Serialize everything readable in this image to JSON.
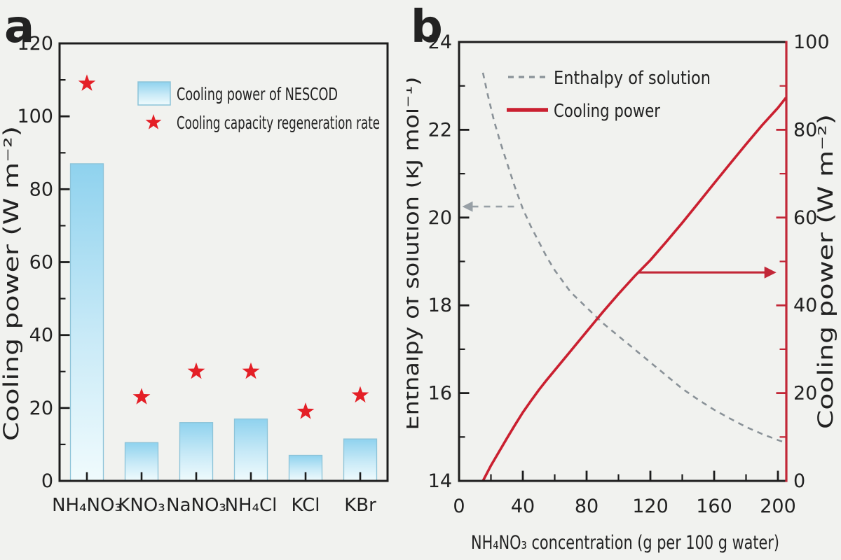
{
  "panel_a": {
    "label": "a",
    "ylabel": "Cooling power (W m⁻²)",
    "legend": {
      "bar_label": "Cooling power of NESCOD",
      "star_label": "Cooling capacity regeneration rate"
    }
  },
  "panel_b": {
    "label": "b",
    "xlabel": "NH₄NO₃ concentration (g per 100 g water)",
    "left_ylabel": "Enthalpy of solution (kJ mol⁻¹)",
    "right_ylabel": "Cooling power (W m⁻²)",
    "legend": {
      "dashed_label": "Enthalpy of solution",
      "solid_label": "Cooling power"
    }
  },
  "colors": {
    "bar_top": "#8fd2ee",
    "bar_mid": "#c9eaf7",
    "bar_bottom": "#f0fbfd",
    "bar_border": "#8cc3d8",
    "star_red": "#e41f26",
    "line_red": "#ca2030",
    "right_axis_red": "#c22737",
    "dash_gray": "#8a9298",
    "arrow_gray": "#98a0a6",
    "frame_black": "#1d1d1d",
    "text_dark": "#222222"
  },
  "chart_data": [
    {
      "id": "panel-a",
      "type": "bar",
      "title": "",
      "categories": [
        "NH₄NO₃",
        "KNO₃",
        "NaNO₃",
        "NH₄Cl",
        "KCl",
        "KBr"
      ],
      "series": [
        {
          "name": "Cooling power of NESCOD",
          "type": "bar",
          "values": [
            87,
            10.5,
            16,
            17,
            7,
            11.5
          ]
        },
        {
          "name": "Cooling capacity regeneration rate",
          "type": "star-scatter",
          "values": [
            109,
            23,
            30,
            30,
            19,
            23.5
          ]
        }
      ],
      "xlabel": "",
      "ylabel": "Cooling power (W m⁻²)",
      "ylim": [
        0,
        120
      ],
      "yticks": [
        0,
        20,
        40,
        60,
        80,
        100,
        120
      ],
      "yminor_step": 10,
      "grid": false,
      "legend_position": "upper-right-inside"
    },
    {
      "id": "panel-b",
      "type": "line",
      "title": "",
      "xlabel": "NH₄NO₃ concentration (g per 100 g water)",
      "xlim": [
        0,
        205
      ],
      "xticks": [
        0,
        40,
        80,
        120,
        160,
        200
      ],
      "xminor_step": 20,
      "grid": false,
      "legend_position": "upper-left-inside",
      "left_axis": {
        "label": "Enthalpy of solution (kJ mol⁻¹)",
        "lim": [
          14,
          24
        ],
        "ticks": [
          14,
          16,
          18,
          20,
          22,
          24
        ],
        "minor_step": 1
      },
      "right_axis": {
        "label": "Cooling power (W m⁻²)",
        "lim": [
          0,
          100
        ],
        "ticks": [
          0,
          20,
          40,
          60,
          80,
          100
        ],
        "minor_step": 10
      },
      "series": [
        {
          "name": "Enthalpy of solution",
          "axis": "left",
          "style": "dashed",
          "points": [
            [
              15,
              23.3
            ],
            [
              18,
              22.8
            ],
            [
              22,
              22.2
            ],
            [
              26,
              21.7
            ],
            [
              30,
              21.25
            ],
            [
              35,
              20.7
            ],
            [
              40,
              20.2
            ],
            [
              45,
              19.8
            ],
            [
              50,
              19.45
            ],
            [
              55,
              19.1
            ],
            [
              60,
              18.8
            ],
            [
              70,
              18.3
            ],
            [
              80,
              17.95
            ],
            [
              90,
              17.6
            ],
            [
              100,
              17.3
            ],
            [
              110,
              17.0
            ],
            [
              120,
              16.7
            ],
            [
              130,
              16.4
            ],
            [
              140,
              16.1
            ],
            [
              150,
              15.85
            ],
            [
              160,
              15.62
            ],
            [
              170,
              15.42
            ],
            [
              180,
              15.23
            ],
            [
              190,
              15.07
            ],
            [
              200,
              14.93
            ],
            [
              205,
              14.87
            ]
          ]
        },
        {
          "name": "Cooling power",
          "axis": "right",
          "style": "solid",
          "points": [
            [
              15,
              0
            ],
            [
              20,
              3.5
            ],
            [
              25,
              6.6
            ],
            [
              30,
              9.7
            ],
            [
              35,
              12.7
            ],
            [
              40,
              15.6
            ],
            [
              45,
              18.2
            ],
            [
              50,
              20.7
            ],
            [
              55,
              23.0
            ],
            [
              60,
              25.2
            ],
            [
              65,
              27.4
            ],
            [
              70,
              29.6
            ],
            [
              75,
              31.8
            ],
            [
              80,
              34.0
            ],
            [
              85,
              36.2
            ],
            [
              90,
              38.4
            ],
            [
              95,
              40.5
            ],
            [
              100,
              42.6
            ],
            [
              110,
              46.6
            ],
            [
              120,
              50.3
            ],
            [
              130,
              54.5
            ],
            [
              140,
              58.8
            ],
            [
              150,
              63.3
            ],
            [
              160,
              67.8
            ],
            [
              170,
              72.3
            ],
            [
              180,
              76.7
            ],
            [
              190,
              81.0
            ],
            [
              200,
              85.0
            ],
            [
              205,
              87.3
            ]
          ]
        }
      ],
      "annotations": [
        {
          "type": "arrow",
          "points_to": "left-axis",
          "axis": "left",
          "y": 20.25,
          "x_tail": 36,
          "x_tip": 2,
          "style": "dashed"
        },
        {
          "type": "arrow",
          "points_to": "right-axis",
          "axis": "right",
          "y": 47.5,
          "x_tail": 112,
          "x_tip": 199,
          "style": "solid"
        }
      ]
    }
  ]
}
